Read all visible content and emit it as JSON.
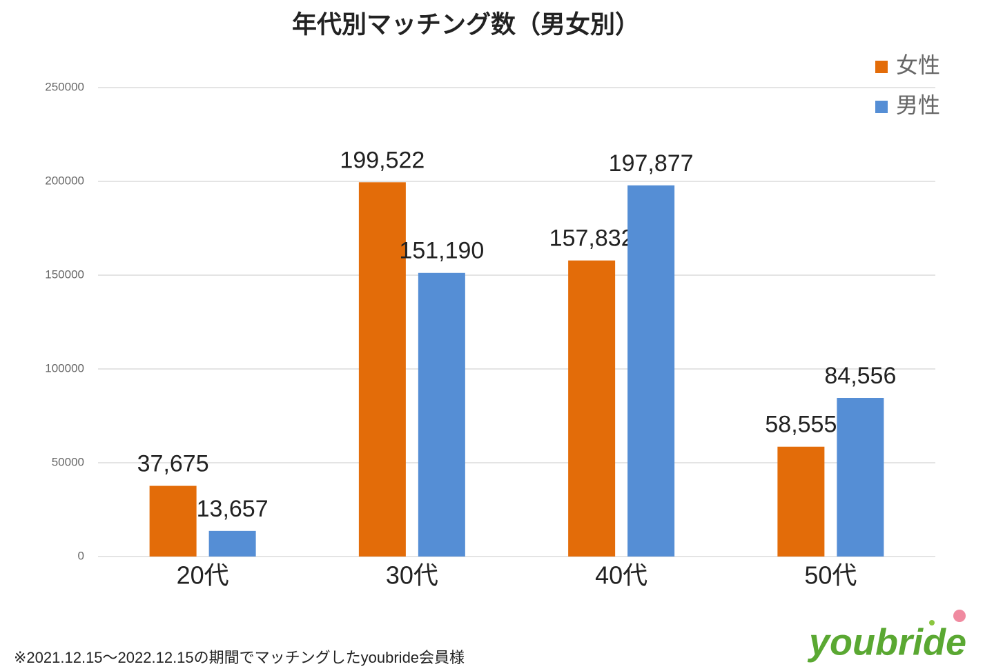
{
  "chart_data": {
    "type": "bar",
    "title": "年代別マッチング数（男女別）",
    "categories": [
      "20代",
      "30代",
      "40代",
      "50代"
    ],
    "series": [
      {
        "name": "女性",
        "color": "#e36c09",
        "values": [
          37675,
          199522,
          157832,
          58555
        ],
        "value_labels": [
          "37,675",
          "199,522",
          "157,832",
          "58,555"
        ]
      },
      {
        "name": "男性",
        "color": "#558ed5",
        "values": [
          13657,
          151190,
          197877,
          84556
        ],
        "value_labels": [
          "13,657",
          "151,190",
          "197,877",
          "84,556"
        ]
      }
    ],
    "ylim": [
      0,
      250000
    ],
    "yticks": [
      0,
      50000,
      100000,
      150000,
      200000,
      250000
    ],
    "grid": true,
    "legend": "top-right"
  },
  "footnote": "※2021.12.15～2022.12.15の期間でマッチングしたyoubride会員様",
  "logo": "youbride"
}
